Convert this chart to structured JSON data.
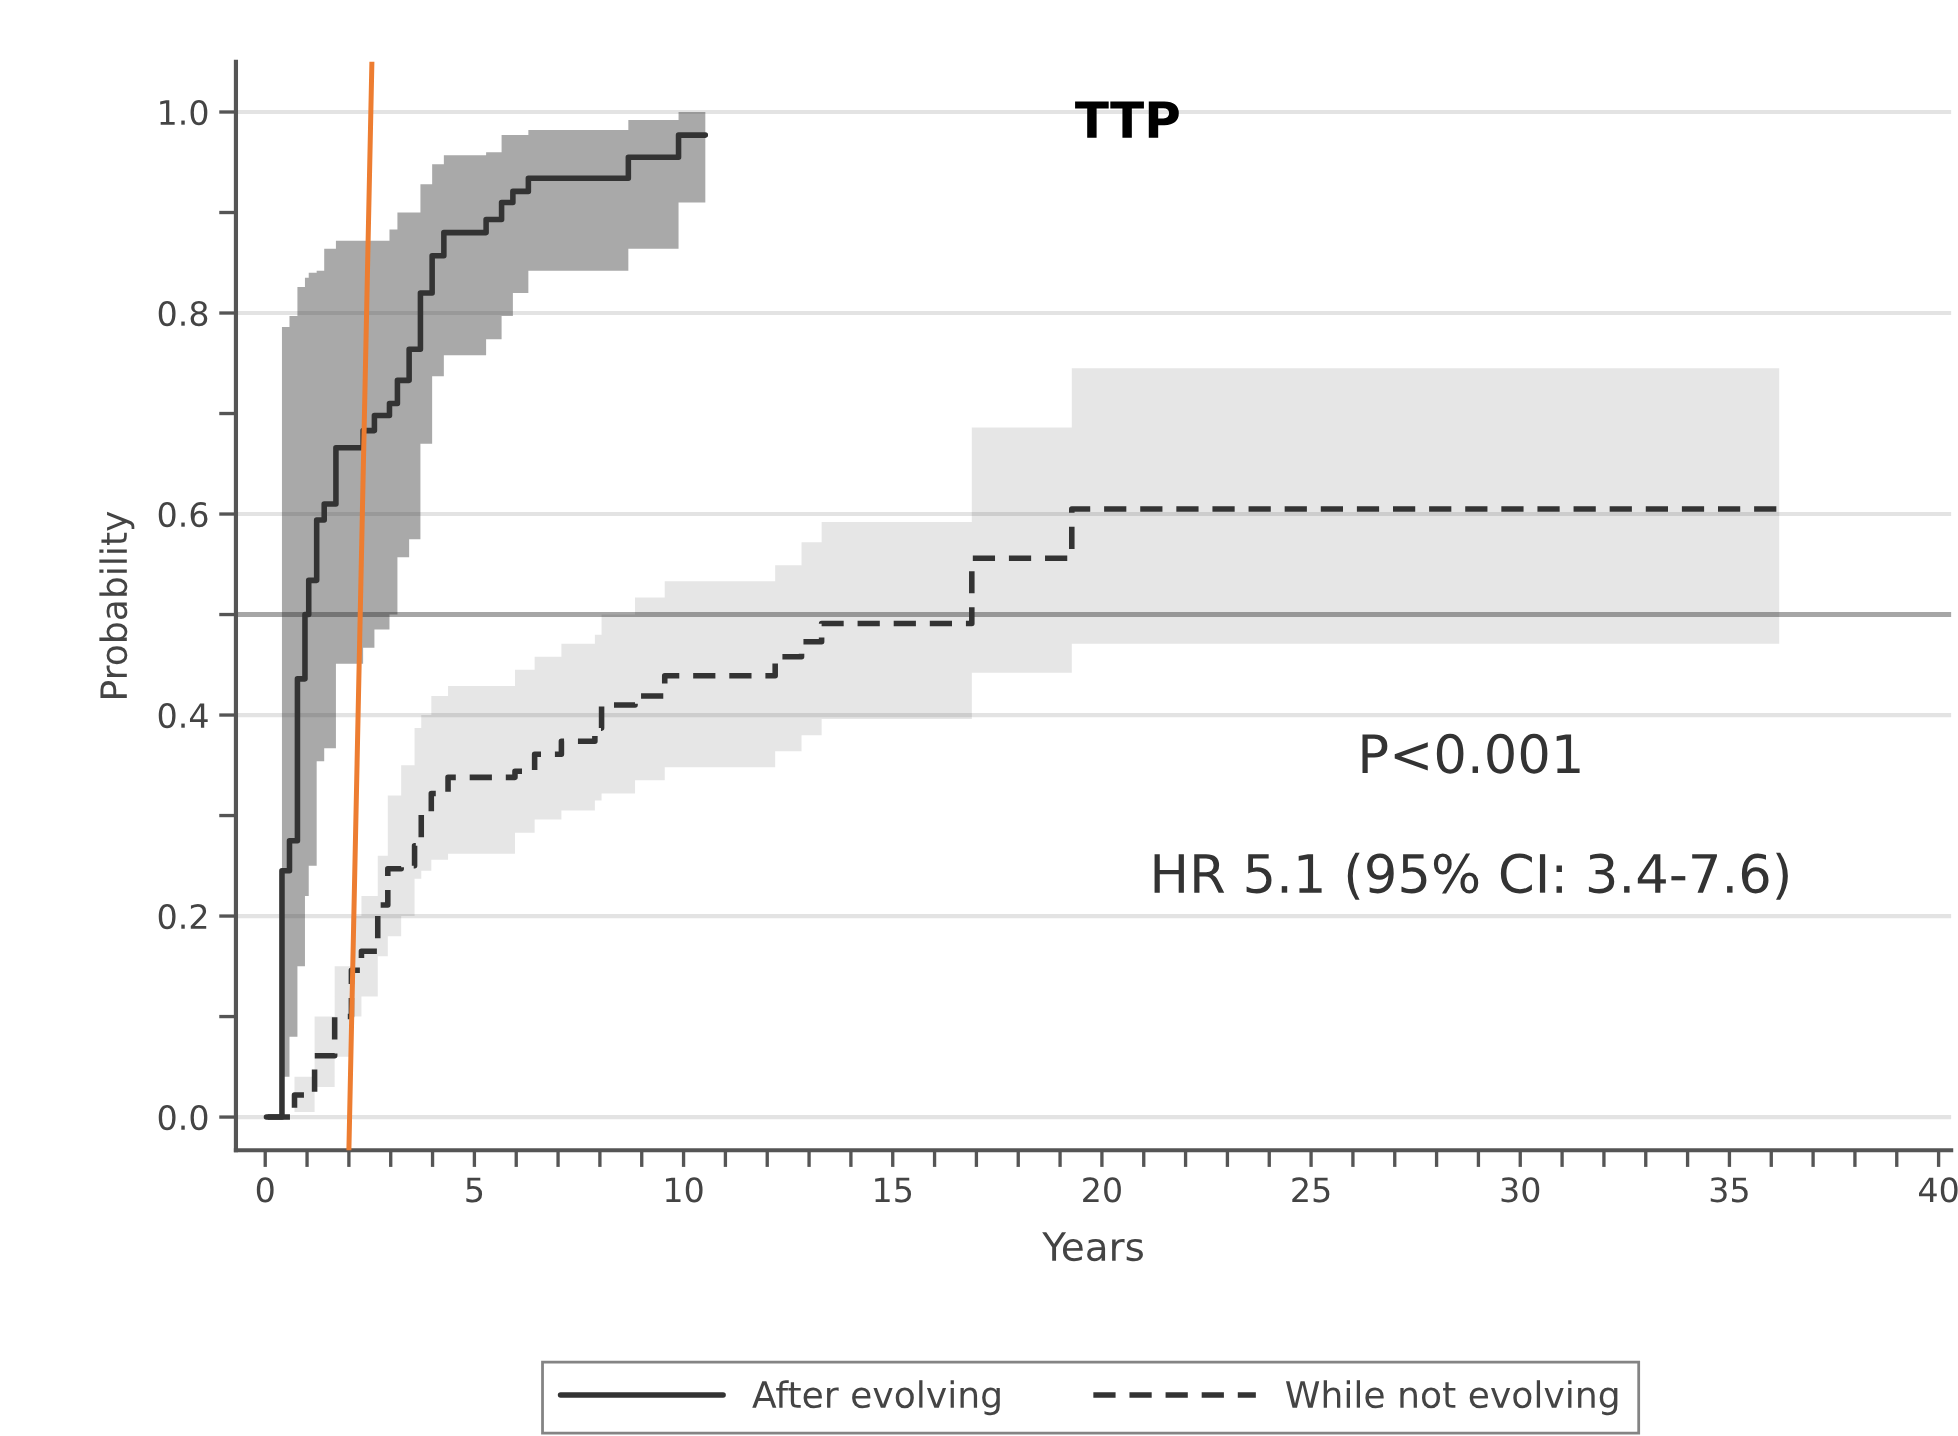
{
  "chart_data": {
    "type": "step",
    "title": "TTP",
    "xlabel": "Years",
    "ylabel": "Probability",
    "annotations": [
      "P<0.001",
      "HR 5.1 (95% CI: 3.4-7.6)"
    ],
    "xlim": [
      -0.7,
      40.3
    ],
    "ylim": [
      -0.033,
      1.05
    ],
    "xticks": [
      0,
      {
        "value": 1,
        "label": null
      },
      {
        "value": 2,
        "label": null
      },
      {
        "value": 3,
        "label": null
      },
      {
        "value": 4,
        "label": null
      },
      5,
      {
        "value": 6,
        "label": null
      },
      {
        "value": 7,
        "label": null
      },
      {
        "value": 8,
        "label": null
      },
      {
        "value": 9,
        "label": null
      },
      10,
      {
        "value": 11,
        "label": null
      },
      {
        "value": 12,
        "label": null
      },
      {
        "value": 13,
        "label": null
      },
      {
        "value": 14,
        "label": null
      },
      15,
      {
        "value": 16,
        "label": null
      },
      {
        "value": 17,
        "label": null
      },
      {
        "value": 18,
        "label": null
      },
      {
        "value": 19,
        "label": null
      },
      20,
      {
        "value": 21,
        "label": null
      },
      {
        "value": 22,
        "label": null
      },
      {
        "value": 23,
        "label": null
      },
      {
        "value": 24,
        "label": null
      },
      25,
      {
        "value": 26,
        "label": null
      },
      {
        "value": 27,
        "label": null
      },
      {
        "value": 28,
        "label": null
      },
      {
        "value": 29,
        "label": null
      },
      30,
      {
        "value": 31,
        "label": null
      },
      {
        "value": 32,
        "label": null
      },
      {
        "value": 33,
        "label": null
      },
      {
        "value": 34,
        "label": null
      },
      35,
      {
        "value": 36,
        "label": null
      },
      {
        "value": 37,
        "label": null
      },
      {
        "value": 38,
        "label": null
      },
      {
        "value": 39,
        "label": null
      },
      40
    ],
    "yticks": [
      {
        "value": 0.0,
        "label": "0.0"
      },
      {
        "value": 0.1,
        "label": null
      },
      {
        "value": 0.2,
        "label": "0.2"
      },
      {
        "value": 0.3,
        "label": null
      },
      {
        "value": 0.4,
        "label": "0.4"
      },
      {
        "value": 0.5,
        "label": null
      },
      {
        "value": 0.6,
        "label": "0.6"
      },
      {
        "value": 0.7,
        "label": null
      },
      {
        "value": 0.8,
        "label": "0.8"
      },
      {
        "value": 0.9,
        "label": null
      },
      {
        "value": 1.0,
        "label": "1.0"
      }
    ],
    "grid": "y",
    "legend": "bottom",
    "ref_lines": [
      {
        "axis": "y",
        "value": 0.5,
        "color": "#a6a6a6"
      }
    ],
    "series": [
      {
        "name": "After evolving",
        "color": "#333333",
        "line_style": "solid",
        "x": [
          0.03,
          0.4,
          0.58,
          0.77,
          0.95,
          1.04,
          1.23,
          1.41,
          1.69,
          2.34,
          2.61,
          2.97,
          3.16,
          3.44,
          3.71,
          3.99,
          4.27,
          5.28,
          5.65,
          5.92,
          6.29,
          8.68,
          9.88,
          10.52
        ],
        "values": [
          0,
          0.245,
          0.275,
          0.436,
          0.5,
          0.534,
          0.594,
          0.61,
          0.666,
          0.683,
          0.698,
          0.71,
          0.733,
          0.764,
          0.82,
          0.857,
          0.88,
          0.893,
          0.91,
          0.921,
          0.934,
          0.955,
          0.977,
          0.977
        ],
        "upper": [
          null,
          0.786,
          0.797,
          0.826,
          0.835,
          0.84,
          0.842,
          0.864,
          0.872,
          0.872,
          0.872,
          0.883,
          0.9,
          0.9,
          0.928,
          0.948,
          0.957,
          0.96,
          0.977,
          0.977,
          0.982,
          0.992,
          1.0,
          1.0
        ],
        "lower": [
          null,
          0.04,
          0.08,
          0.15,
          0.22,
          0.25,
          0.354,
          0.367,
          0.451,
          0.467,
          0.485,
          0.5,
          0.557,
          0.575,
          0.67,
          0.737,
          0.758,
          0.774,
          0.797,
          0.82,
          0.842,
          0.864,
          0.91,
          0.91
        ]
      },
      {
        "name": "While not evolving",
        "color": "#333333",
        "line_style": "dashed",
        "x": [
          0.06,
          0.7,
          1.18,
          1.66,
          2.06,
          2.3,
          2.69,
          2.93,
          3.25,
          3.57,
          3.73,
          3.97,
          4.37,
          5.97,
          6.44,
          7.08,
          7.88,
          8.04,
          8.84,
          9.55,
          12.19,
          12.82,
          13.3,
          16.89,
          19.28,
          36.19
        ],
        "values": [
          0,
          0.022,
          0.061,
          0.1,
          0.146,
          0.165,
          0.211,
          0.247,
          0.25,
          0.27,
          0.302,
          0.322,
          0.338,
          0.344,
          0.361,
          0.374,
          0.387,
          0.41,
          0.419,
          0.439,
          0.458,
          0.473,
          0.491,
          0.556,
          0.605,
          0.605
        ],
        "upper": [
          null,
          0.04,
          0.1,
          0.15,
          0.2,
          0.22,
          0.26,
          0.32,
          0.35,
          0.387,
          0.4,
          0.419,
          0.429,
          0.445,
          0.458,
          0.471,
          0.48,
          0.5,
          0.517,
          0.533,
          0.549,
          0.572,
          0.592,
          0.686,
          0.745,
          0.745
        ],
        "lower": [
          null,
          0.005,
          0.03,
          0.06,
          0.1,
          0.12,
          0.16,
          0.18,
          0.2,
          0.237,
          0.245,
          0.256,
          0.262,
          0.283,
          0.296,
          0.305,
          0.315,
          0.322,
          0.335,
          0.348,
          0.364,
          0.38,
          0.396,
          0.442,
          0.471,
          0.471
        ]
      },
      {
        "type": "line",
        "color": "#ed7d31",
        "line_style": "solid",
        "x": [
          2.0,
          2.55
        ],
        "values": [
          -0.033,
          1.05
        ]
      }
    ]
  }
}
